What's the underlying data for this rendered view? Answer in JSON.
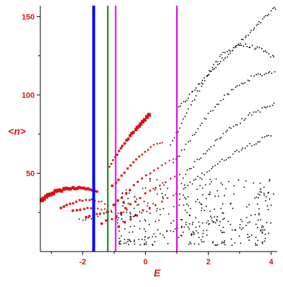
{
  "chart_data": {
    "type": "scatter",
    "title": "",
    "xlabel": "E",
    "ylabel": "<n>",
    "xlim": [
      -3.35,
      4.2
    ],
    "ylim": [
      0,
      157
    ],
    "grid": false,
    "legend": "none",
    "x_ticks": [
      -2,
      0,
      2,
      4
    ],
    "y_ticks": [
      50,
      100,
      150
    ],
    "tick_label_color": "#e01010",
    "vertical_lines": [
      {
        "x": -1.65,
        "color": "#0000ff",
        "style": "thick"
      },
      {
        "x": -1.2,
        "color": "#008000",
        "style": "thin"
      },
      {
        "x": -0.95,
        "color": "#e000e0",
        "style": "thin"
      },
      {
        "x": 1.0,
        "color": "#e000e0",
        "style": "thin"
      }
    ],
    "series": [
      {
        "color": "#e01010",
        "marker": "square",
        "size_scale": "larger squares near the ground state",
        "bands": [
          {
            "x0": -3.3,
            "x1": -1.55,
            "n": 26,
            "y": [
              33,
              36,
              38,
              39,
              40,
              40.5,
              40.5,
              40.2,
              39.5,
              38.7
            ]
          },
          {
            "x0": -2.7,
            "x1": -1.2,
            "n": 16,
            "y": [
              28,
              30,
              32,
              33,
              33,
              32,
              30
            ]
          },
          {
            "x0": -2.3,
            "x1": -1.3,
            "n": 10,
            "y": [
              26,
              27.5,
              28,
              27
            ]
          },
          {
            "x0": -1.9,
            "x1": -1.1,
            "n": 8,
            "y": [
              22,
              24,
              26
            ]
          },
          {
            "x0": -1.15,
            "x1": 0.1,
            "n": 22,
            "y": [
              54,
              60,
              66,
              71,
              75,
              79,
              83,
              87
            ]
          },
          {
            "x0": -1.05,
            "x1": 0.55,
            "n": 18,
            "y": [
              42,
              48,
              54,
              60,
              64,
              68,
              70
            ]
          },
          {
            "x0": -1.0,
            "x1": 0.9,
            "n": 16,
            "y": [
              30,
              36,
              42,
              48,
              52,
              56,
              59
            ]
          },
          {
            "x0": -0.95,
            "x1": 1.1,
            "n": 14,
            "y": [
              22,
              28,
              33,
              38,
              42,
              46,
              49
            ]
          },
          {
            "x0": -0.85,
            "x1": 1.1,
            "n": 11,
            "y": [
              16,
              21,
              26,
              30,
              34,
              37
            ]
          },
          {
            "x0": -1.4,
            "x1": -0.6,
            "n": 6,
            "y": [
              18,
              22,
              27
            ]
          }
        ]
      },
      {
        "color": "#000000",
        "marker": "dot",
        "bands": [
          {
            "x0": 1.0,
            "x1": 4.15,
            "n": 62,
            "y": [
              90,
              115,
              135,
              156
            ]
          },
          {
            "x0": 0.8,
            "x1": 4.1,
            "n": 58,
            "y": [
              68,
              90,
              110,
              126,
              132,
              130,
              124
            ]
          },
          {
            "x0": 0.9,
            "x1": 4.1,
            "n": 50,
            "y": [
              56,
              75,
              92,
              104,
              112,
              115
            ]
          },
          {
            "x0": 1.2,
            "x1": 4.1,
            "n": 46,
            "y": [
              48,
              64,
              78,
              88,
              94
            ]
          },
          {
            "x0": 1.2,
            "x1": 4.0,
            "n": 42,
            "y": [
              40,
              54,
              66,
              74
            ]
          },
          {
            "x0": -2.1,
            "x1": -0.5,
            "n": 18,
            "y": [
              20,
              23,
              25,
              24
            ]
          },
          {
            "x0": -0.8,
            "x1": 2.5,
            "n": 30,
            "y": [
              6,
              10,
              16,
              20
            ]
          }
        ],
        "cloud": {
          "x0": -0.9,
          "x1": 4.1,
          "y0": 4,
          "y1": 48,
          "n": 330
        }
      }
    ]
  }
}
